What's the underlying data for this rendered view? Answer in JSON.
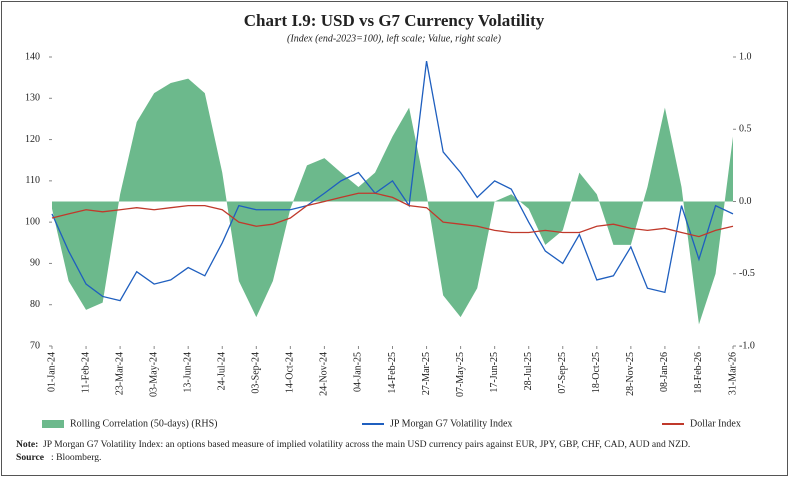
{
  "chart_data": {
    "type": "line",
    "title": "Chart I.9: USD vs G7 Currency Volatility",
    "subtitle": "(Index (end-2023=100), left scale; Value, right scale)",
    "x": [
      "01-Jan-24",
      "21-Jan-24",
      "11-Feb-24",
      "02-Mar-24",
      "23-Mar-24",
      "12-Apr-24",
      "03-May-24",
      "23-May-24",
      "13-Jun-24",
      "03-Jul-24",
      "24-Jul-24",
      "13-Aug-24",
      "03-Sep-24",
      "23-Sep-24",
      "14-Oct-24",
      "03-Nov-24",
      "24-Nov-24",
      "14-Dec-24",
      "04-Jan-25",
      "24-Jan-25",
      "14-Feb-25",
      "06-Mar-25",
      "27-Mar-25",
      "16-Apr-25",
      "07-May-25",
      "27-May-25",
      "17-Jun-25",
      "07-Jul-25",
      "28-Jul-25",
      "17-Aug-25",
      "07-Sep-25",
      "27-Sep-25",
      "18-Oct-25",
      "07-Nov-25",
      "28-Nov-25",
      "18-Dec-25",
      "08-Jan-26",
      "28-Jan-26",
      "18-Feb-26",
      "10-Mar-26",
      "31-Mar-26"
    ],
    "xticks": [
      "01-Jan-24",
      "11-Feb-24",
      "23-Mar-24",
      "03-May-24",
      "13-Jun-24",
      "24-Jul-24",
      "03-Sep-24",
      "14-Oct-24",
      "24-Nov-24",
      "04-Jan-25",
      "14-Feb-25",
      "27-Mar-25",
      "07-May-25",
      "17-Jun-25",
      "28-Jul-25",
      "07-Sep-25",
      "18-Oct-25",
      "28-Nov-25",
      "08-Jan-26",
      "18-Feb-26",
      "31-Mar-26"
    ],
    "xlim": [
      "01-Jan-24",
      "31-Mar-26"
    ],
    "ylim": [
      70,
      140
    ],
    "yticks": [
      70,
      80,
      90,
      100,
      110,
      120,
      130,
      140
    ],
    "y2lim": [
      -1,
      1
    ],
    "y2ticks": [
      {
        "value": -1,
        "label": "-1.0"
      },
      {
        "value": -0.5,
        "label": "-0.5"
      },
      {
        "value": 0,
        "label": "0.0"
      },
      {
        "value": 0.5,
        "label": "0.5"
      },
      {
        "value": 1,
        "label": "1.0"
      }
    ],
    "series": [
      {
        "name": "Rolling Correlation (50-days) (RHS)",
        "kind": "area",
        "axis": "y2",
        "color": "#6cb98c",
        "values": [
          -0.05,
          -0.55,
          -0.75,
          -0.7,
          0.05,
          0.55,
          0.75,
          0.82,
          0.85,
          0.75,
          0.2,
          -0.55,
          -0.8,
          -0.55,
          -0.05,
          0.25,
          0.3,
          0.2,
          0.1,
          0.2,
          0.45,
          0.65,
          0.05,
          -0.65,
          -0.8,
          -0.6,
          0.0,
          0.05,
          -0.05,
          -0.3,
          -0.2,
          0.2,
          0.05,
          -0.3,
          -0.3,
          0.1,
          0.65,
          0.1,
          -0.85,
          -0.5,
          0.45
        ]
      },
      {
        "name": "JP Morgan G7 Volatility Index",
        "kind": "line",
        "color": "#1f5fbf",
        "values": [
          102,
          93,
          85,
          82,
          81,
          88,
          85,
          86,
          89,
          87,
          95,
          104,
          103,
          103,
          103,
          104,
          107,
          110,
          112,
          107,
          110,
          104,
          139,
          117,
          112,
          106,
          110,
          108,
          100,
          93,
          90,
          97,
          86,
          87,
          94,
          84,
          83,
          104,
          91,
          104,
          102
        ]
      },
      {
        "name": "Dollar Index",
        "kind": "line",
        "color": "#c0392b",
        "values": [
          101,
          102,
          103,
          102.5,
          103,
          103.5,
          103,
          103.5,
          104,
          104,
          103,
          100,
          99,
          99.5,
          101,
          104,
          105,
          106,
          107,
          107,
          106,
          104,
          103.5,
          100,
          99.5,
          99,
          98,
          97.5,
          97.5,
          98,
          97.5,
          97.5,
          99,
          99.5,
          98.5,
          98,
          98.5,
          97.5,
          96.5,
          98,
          99
        ]
      }
    ],
    "note_label": "Note:",
    "note_text": "JP Morgan G7 Volatility Index: an options based measure of implied volatility across the main USD currency pairs against EUR, JPY, GBP, CHF, CAD, AUD and NZD.",
    "source_label": "Source",
    "source_text": ": Bloomberg."
  }
}
